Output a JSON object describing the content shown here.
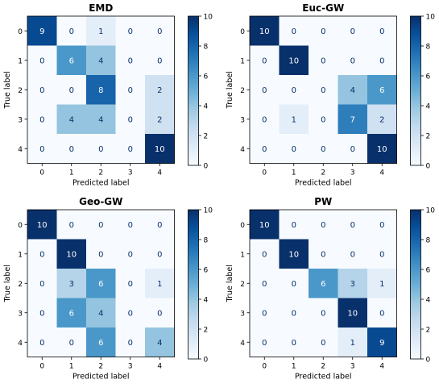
{
  "chart_data": [
    {
      "type": "heatmap",
      "title": "EMD",
      "xlabel": "Predicted label",
      "ylabel": "True label",
      "x_categories": [
        "0",
        "1",
        "2",
        "3",
        "4"
      ],
      "y_categories": [
        "0",
        "1",
        "2",
        "3",
        "4"
      ],
      "values": [
        [
          9,
          0,
          1,
          0,
          0
        ],
        [
          0,
          6,
          4,
          0,
          0
        ],
        [
          0,
          0,
          8,
          0,
          2
        ],
        [
          0,
          4,
          4,
          0,
          2
        ],
        [
          0,
          0,
          0,
          0,
          10
        ]
      ],
      "colorscale": "Blues",
      "vrange": [
        0,
        10
      ],
      "colorbar_ticks": [
        "0",
        "2",
        "4",
        "6",
        "8",
        "10"
      ]
    },
    {
      "type": "heatmap",
      "title": "Euc-GW",
      "xlabel": "Predicted label",
      "ylabel": "True label",
      "x_categories": [
        "0",
        "1",
        "2",
        "3",
        "4"
      ],
      "y_categories": [
        "0",
        "1",
        "2",
        "3",
        "4"
      ],
      "values": [
        [
          10,
          0,
          0,
          0,
          0
        ],
        [
          0,
          10,
          0,
          0,
          0
        ],
        [
          0,
          0,
          0,
          4,
          6
        ],
        [
          0,
          1,
          0,
          7,
          2
        ],
        [
          0,
          0,
          0,
          0,
          10
        ]
      ],
      "colorscale": "Blues",
      "vrange": [
        0,
        10
      ],
      "colorbar_ticks": [
        "0",
        "2",
        "4",
        "6",
        "8",
        "10"
      ]
    },
    {
      "type": "heatmap",
      "title": "Geo-GW",
      "xlabel": "Predicted label",
      "ylabel": "True label",
      "x_categories": [
        "0",
        "1",
        "2",
        "3",
        "4"
      ],
      "y_categories": [
        "0",
        "1",
        "2",
        "3",
        "4"
      ],
      "values": [
        [
          10,
          0,
          0,
          0,
          0
        ],
        [
          0,
          10,
          0,
          0,
          0
        ],
        [
          0,
          3,
          6,
          0,
          1
        ],
        [
          0,
          6,
          4,
          0,
          0
        ],
        [
          0,
          0,
          6,
          0,
          4
        ]
      ],
      "colorscale": "Blues",
      "vrange": [
        0,
        10
      ],
      "colorbar_ticks": [
        "0",
        "2",
        "4",
        "6",
        "8",
        "10"
      ]
    },
    {
      "type": "heatmap",
      "title": "PW",
      "xlabel": "Predicted label",
      "ylabel": "True label",
      "x_categories": [
        "0",
        "1",
        "2",
        "3",
        "4"
      ],
      "y_categories": [
        "0",
        "1",
        "2",
        "3",
        "4"
      ],
      "values": [
        [
          10,
          0,
          0,
          0,
          0
        ],
        [
          0,
          10,
          0,
          0,
          0
        ],
        [
          0,
          0,
          6,
          3,
          1
        ],
        [
          0,
          0,
          0,
          10,
          0
        ],
        [
          0,
          0,
          0,
          1,
          9
        ]
      ],
      "colorscale": "Blues",
      "vrange": [
        0,
        10
      ],
      "colorbar_ticks": [
        "0",
        "2",
        "4",
        "6",
        "8",
        "10"
      ]
    }
  ]
}
